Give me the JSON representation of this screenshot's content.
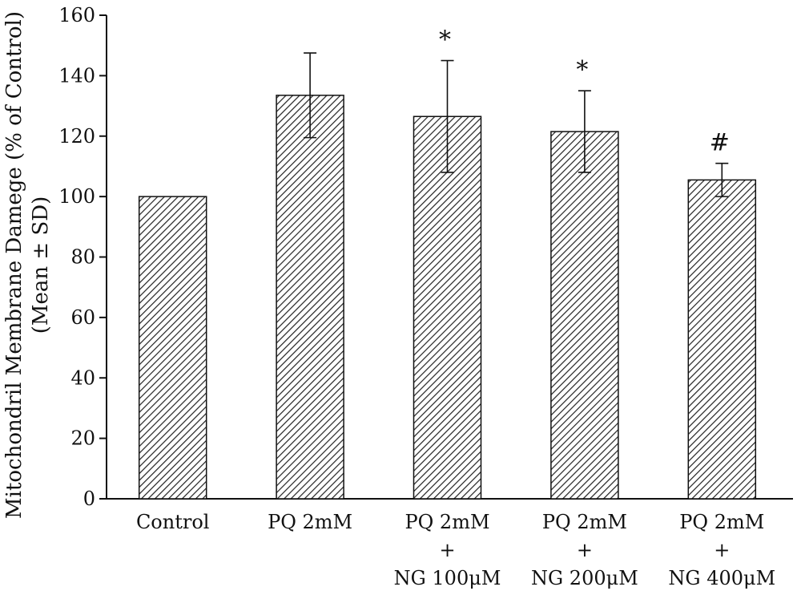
{
  "chart_data": {
    "type": "bar",
    "categories": [
      [
        "Control"
      ],
      [
        "PQ 2mM"
      ],
      [
        "PQ 2mM",
        "+",
        "NG 100μM"
      ],
      [
        "PQ 2mM",
        "+",
        "NG 200μM"
      ],
      [
        "PQ 2mM",
        "+",
        "NG 400μM"
      ]
    ],
    "values": [
      100,
      133.5,
      126.5,
      121.5,
      105.5
    ],
    "error_sd": [
      null,
      14,
      18.5,
      13.5,
      5.5
    ],
    "significance": [
      "",
      "",
      "*",
      "*",
      "#"
    ],
    "ylabel_lines": [
      "Mitochondril Membrane Damege (% of Control)",
      "(Mean ± SD)"
    ],
    "xlabel": "",
    "ylim": [
      0,
      160
    ],
    "yticks": [
      0,
      20,
      40,
      60,
      80,
      100,
      120,
      140,
      160
    ],
    "grid": false,
    "bar_fill": "hatched-diagonal",
    "colors": {
      "bar_stroke": "#111111",
      "hatch": "#222222",
      "axis": "#111111"
    }
  }
}
